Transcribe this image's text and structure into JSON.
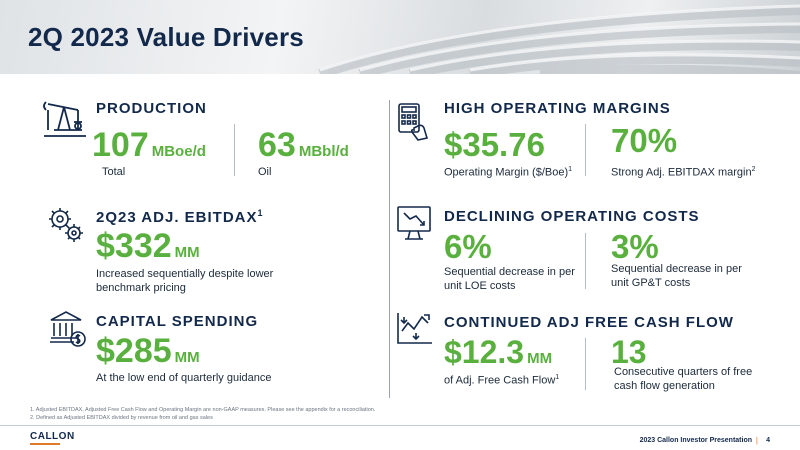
{
  "header": {
    "title": "2Q 2023 Value Drivers"
  },
  "production": {
    "title": "PRODUCTION",
    "total_value": "107",
    "total_unit": "MBoe/d",
    "total_label": "Total",
    "oil_value": "63",
    "oil_unit": "MBbl/d",
    "oil_label": "Oil"
  },
  "margins": {
    "title": "HIGH OPERATING MARGINS",
    "margin_value": "$35.76",
    "margin_label": "Operating Margin ($/Boe)",
    "margin_sup": "1",
    "ebitdax_value": "70%",
    "ebitdax_label": "Strong Adj. EBITDAX margin",
    "ebitdax_sup": "2"
  },
  "adj_ebitdax": {
    "title": "2Q23 ADJ. EBITDAX",
    "title_sup": "1",
    "value": "$332",
    "unit": "MM",
    "desc": "Increased sequentially despite lower benchmark pricing"
  },
  "costs": {
    "title": "DECLINING OPERATING COSTS",
    "loe_value": "6%",
    "loe_desc": "Sequential decrease in per unit LOE costs",
    "gpt_value": "3%",
    "gpt_desc": "Sequential decrease in per unit GP&T costs"
  },
  "capital": {
    "title": "CAPITAL SPENDING",
    "value": "$285",
    "unit": "MM",
    "desc": "At the low end of quarterly guidance"
  },
  "fcf": {
    "title": "CONTINUED ADJ FREE CASH FLOW",
    "value": "$12.3",
    "unit": "MM",
    "label": "of Adj. Free Cash Flow",
    "label_sup": "1",
    "quarters_value": "13",
    "quarters_desc": "Consecutive quarters of free cash flow generation"
  },
  "footnotes": [
    "1. Adjusted EBITDAX, Adjusted Free Cash Flow and Operating Margin are non-GAAP measures. Please see the appendix for a reconciliation.",
    "2. Defined as Adjusted EBITDAX divided by revenue from oil and gas sales"
  ],
  "footer": {
    "logo": "CALLON",
    "presentation": "2023 Callon Investor Presentation",
    "separator": "|",
    "page": "4"
  },
  "icons": [
    "oil-pumpjack-icon",
    "calculator-hand-icon",
    "gears-icon",
    "monitor-chart-icon",
    "bank-dollar-icon",
    "trend-arrows-icon"
  ],
  "colors": {
    "navy": "#13294b",
    "green": "#5ab03e",
    "accent": "#e07b2a"
  }
}
